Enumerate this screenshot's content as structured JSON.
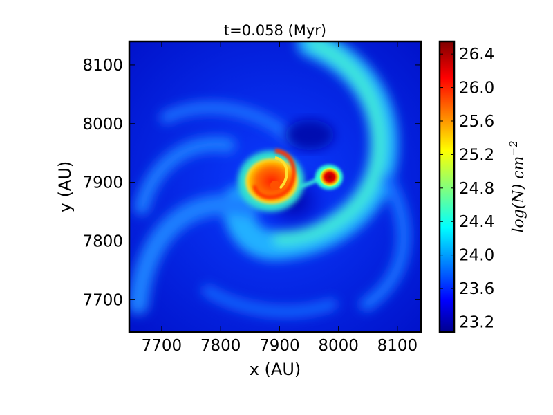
{
  "chart_data": {
    "type": "heatmap",
    "title": "t=0.058 (Myr)",
    "xlabel": "x (AU)",
    "ylabel": "y (AU)",
    "xlim": [
      7645,
      8140
    ],
    "ylim": [
      7645,
      8140
    ],
    "xticks": [
      7700,
      7800,
      7900,
      8000,
      8100
    ],
    "yticks": [
      7700,
      7800,
      7900,
      8000,
      8100
    ],
    "xtick_labels": [
      "7700",
      "7800",
      "7900",
      "8000",
      "8100"
    ],
    "ytick_labels": [
      "7700",
      "7800",
      "7900",
      "8000",
      "8100"
    ],
    "colormap": "jet",
    "colorbar": {
      "label_base": "log(N) cm",
      "label_exponent": "−2",
      "range": [
        23.08,
        26.55
      ],
      "ticks": [
        23.2,
        23.6,
        24.0,
        24.4,
        24.8,
        25.2,
        25.6,
        26.0,
        26.4
      ],
      "tick_labels": [
        "23.2",
        "23.6",
        "24.0",
        "24.4",
        "24.8",
        "25.2",
        "25.6",
        "26.0",
        "26.4"
      ]
    },
    "features": [
      {
        "kind": "primary-disk",
        "center": [
          7895,
          7895
        ],
        "peak": 26.0
      },
      {
        "kind": "secondary-core",
        "center": [
          7988,
          7908
        ],
        "peak": 26.5
      },
      {
        "kind": "spiral-arms",
        "level": 24.2
      }
    ]
  }
}
